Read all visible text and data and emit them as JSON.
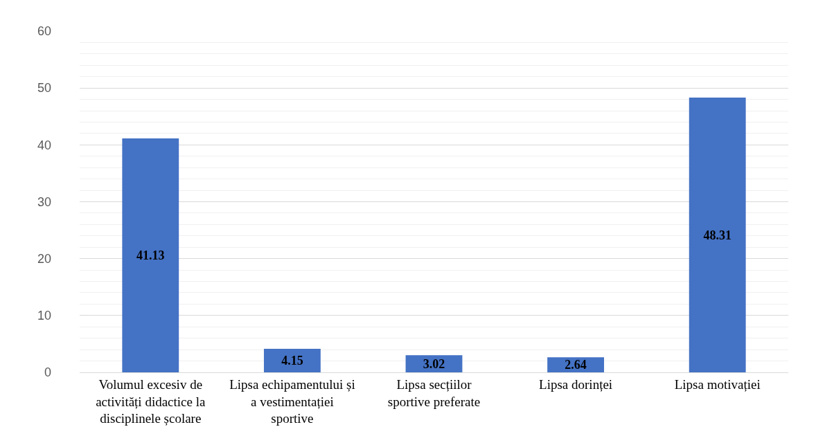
{
  "chart_data": {
    "type": "bar",
    "categories": [
      "Volumul excesiv de activități didactice la disciplinele școlare",
      "Lipsa echipamentului și a vestimentației sportive",
      "Lipsa secțiilor sportive preferate",
      "Lipsa dorinței",
      "Lipsa motivației"
    ],
    "values": [
      41.13,
      4.15,
      3.02,
      2.64,
      48.31
    ],
    "color": "#4472c4",
    "data_labels": true,
    "ylim": [
      0,
      60
    ],
    "yticks": [
      0,
      {
        "value": 2,
        "label": null
      },
      {
        "value": 4,
        "label": null
      },
      {
        "value": 6,
        "label": null
      },
      {
        "value": 8,
        "label": null
      },
      10,
      {
        "value": 12,
        "label": null
      },
      {
        "value": 14,
        "label": null
      },
      {
        "value": 16,
        "label": null
      },
      {
        "value": 18,
        "label": null
      },
      20,
      {
        "value": 22,
        "label": null
      },
      {
        "value": 24,
        "label": null
      },
      {
        "value": 26,
        "label": null
      },
      {
        "value": 28,
        "label": null
      },
      30,
      {
        "value": 32,
        "label": null
      },
      {
        "value": 34,
        "label": null
      },
      {
        "value": 36,
        "label": null
      },
      {
        "value": 38,
        "label": null
      },
      40,
      {
        "value": 42,
        "label": null
      },
      {
        "value": 44,
        "label": null
      },
      {
        "value": 46,
        "label": null
      },
      {
        "value": 48,
        "label": null
      },
      50,
      {
        "value": 52,
        "label": null
      },
      {
        "value": 54,
        "label": null
      },
      {
        "value": 56,
        "label": null
      },
      {
        "value": 58,
        "label": null
      },
      60
    ],
    "grid": "y"
  }
}
